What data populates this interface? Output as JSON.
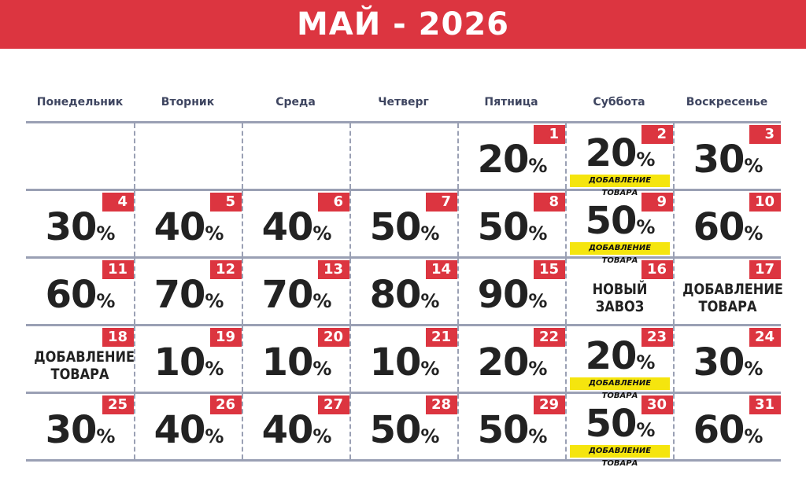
{
  "title": "МАЙ - 2026",
  "weekdays": [
    "Понедельник",
    "Вторник",
    "Среда",
    "Четверг",
    "Пятница",
    "Суббота",
    "Воскресенье"
  ],
  "percent_sign": "%",
  "colors": {
    "accent": "#dc3540",
    "tag": "#f5e50e",
    "grid": "#9aa0b4"
  },
  "weeks": [
    [
      null,
      null,
      null,
      null,
      {
        "day": "1",
        "value": "20"
      },
      {
        "day": "2",
        "value": "20",
        "tag": "ДОБАВЛЕНИЕ ТОВАРА"
      },
      {
        "day": "3",
        "value": "30"
      }
    ],
    [
      {
        "day": "4",
        "value": "30"
      },
      {
        "day": "5",
        "value": "40"
      },
      {
        "day": "6",
        "value": "40"
      },
      {
        "day": "7",
        "value": "50"
      },
      {
        "day": "8",
        "value": "50"
      },
      {
        "day": "9",
        "value": "50",
        "tag": "ДОБАВЛЕНИЕ ТОВАРА"
      },
      {
        "day": "10",
        "value": "60"
      }
    ],
    [
      {
        "day": "11",
        "value": "60"
      },
      {
        "day": "12",
        "value": "70"
      },
      {
        "day": "13",
        "value": "70"
      },
      {
        "day": "14",
        "value": "80"
      },
      {
        "day": "15",
        "value": "90"
      },
      {
        "day": "16",
        "label": [
          "НОВЫЙ",
          "ЗАВОЗ"
        ]
      },
      {
        "day": "17",
        "label": [
          "ДОБАВЛЕНИЕ",
          "ТОВАРА"
        ]
      }
    ],
    [
      {
        "day": "18",
        "label": [
          "ДОБАВЛЕНИЕ",
          "ТОВАРА"
        ]
      },
      {
        "day": "19",
        "value": "10"
      },
      {
        "day": "20",
        "value": "10"
      },
      {
        "day": "21",
        "value": "10"
      },
      {
        "day": "22",
        "value": "20"
      },
      {
        "day": "23",
        "value": "20",
        "tag": "ДОБАВЛЕНИЕ ТОВАРА"
      },
      {
        "day": "24",
        "value": "30"
      }
    ],
    [
      {
        "day": "25",
        "value": "30"
      },
      {
        "day": "26",
        "value": "40"
      },
      {
        "day": "27",
        "value": "40"
      },
      {
        "day": "28",
        "value": "50"
      },
      {
        "day": "29",
        "value": "50"
      },
      {
        "day": "30",
        "value": "50",
        "tag": "ДОБАВЛЕНИЕ ТОВАРА"
      },
      {
        "day": "31",
        "value": "60"
      }
    ]
  ]
}
